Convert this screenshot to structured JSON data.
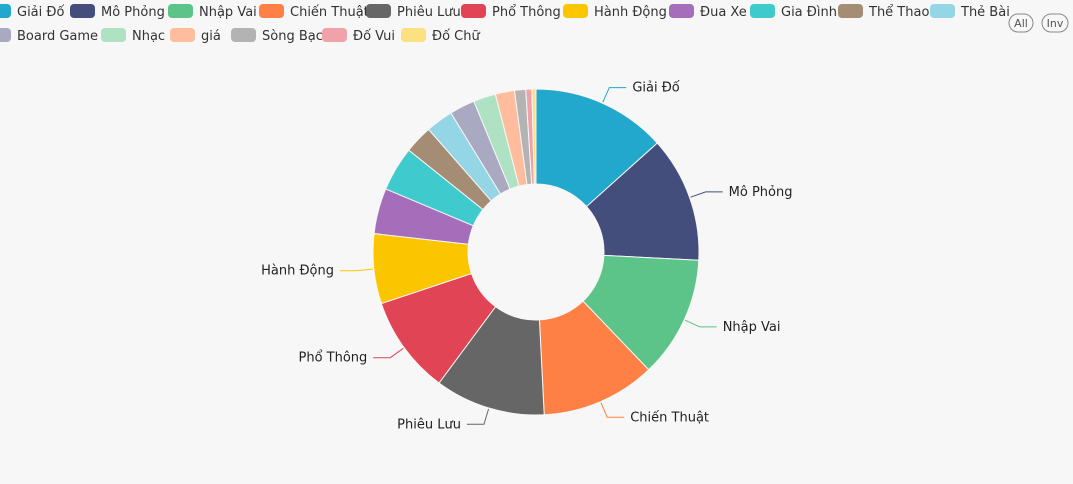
{
  "controls": {
    "all_label": "All",
    "inv_label": "Inv"
  },
  "chart_data": {
    "type": "pie",
    "donut": true,
    "title": "",
    "legend_position": "top-left",
    "categories": [
      "Giải Đố",
      "Mô Phỏng",
      "Nhập Vai",
      "Chiến Thuật",
      "Phiêu Lưu",
      "Phổ Thông",
      "Hành Động",
      "Đua Xe",
      "Gia Đình",
      "Thể Thao",
      "Thẻ Bài",
      "Board Game",
      "Nhạc",
      "giá",
      "Sòng Bạc",
      "Đố Vui",
      "Đố Chữ"
    ],
    "values": [
      133,
      124,
      120,
      113,
      109,
      97,
      69,
      45,
      44,
      28,
      27,
      25,
      22,
      19,
      11,
      6,
      4
    ],
    "colors": [
      "#22a7cd",
      "#444e7d",
      "#5cc489",
      "#ff8044",
      "#666666",
      "#e04455",
      "#fbc600",
      "#a56dba",
      "#3fcbcd",
      "#a58c75",
      "#94d5e6",
      "#a9a9c2",
      "#afe1c3",
      "#ffbd9e",
      "#b3b3b3",
      "#f0a1aa",
      "#fde07f"
    ],
    "labeled_slices": [
      0,
      1,
      2,
      3,
      4,
      5,
      6
    ]
  }
}
